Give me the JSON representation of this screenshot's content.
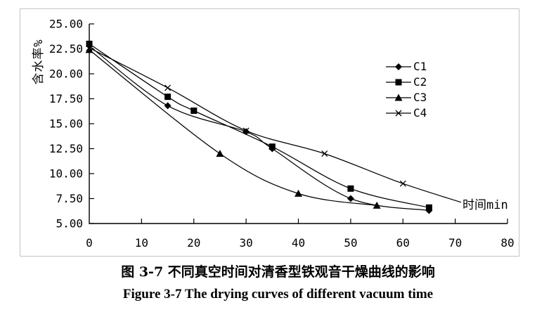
{
  "figure": {
    "caption_cn": "图 3-7  不同真空时间对清香型铁观音干燥曲线的影响",
    "caption_en": "Figure 3-7 The drying curves of different vacuum time"
  },
  "chart_data": {
    "type": "line",
    "title": "",
    "xlabel": "时间min",
    "ylabel": "含水率%",
    "xlim": [
      0,
      80
    ],
    "ylim": [
      5,
      25
    ],
    "x_ticks": [
      "0",
      "10",
      "20",
      "30",
      "40",
      "50",
      "60",
      "70",
      "80"
    ],
    "y_ticks": [
      "25.00",
      "22.50",
      "20.00",
      "17.50",
      "15.00",
      "12.50",
      "10.00",
      "7.50",
      "5.00"
    ],
    "grid": false,
    "legend_position": "upper-right-inside",
    "line_color": "#000000",
    "series": [
      {
        "name": "C1",
        "marker": "diamond",
        "points": [
          [
            0,
            22.8
          ],
          [
            15,
            16.8
          ],
          [
            30,
            14.2
          ],
          [
            35,
            12.5
          ],
          [
            50,
            7.5
          ],
          [
            65,
            6.3
          ]
        ]
      },
      {
        "name": "C2",
        "marker": "square",
        "points": [
          [
            0,
            23.0
          ],
          [
            15,
            17.7
          ],
          [
            20,
            16.3
          ],
          [
            35,
            12.7
          ],
          [
            50,
            8.5
          ],
          [
            65,
            6.6
          ]
        ]
      },
      {
        "name": "C3",
        "marker": "triangle",
        "points": [
          [
            0,
            22.4
          ],
          [
            25,
            12.0
          ],
          [
            40,
            8.0
          ],
          [
            55,
            6.8
          ]
        ]
      },
      {
        "name": "C4",
        "marker": "x",
        "points": [
          [
            0,
            22.6
          ],
          [
            15,
            18.6
          ],
          [
            30,
            14.3
          ],
          [
            45,
            12.0
          ],
          [
            60,
            9.0
          ],
          [
            75,
            6.5
          ]
        ]
      }
    ]
  }
}
